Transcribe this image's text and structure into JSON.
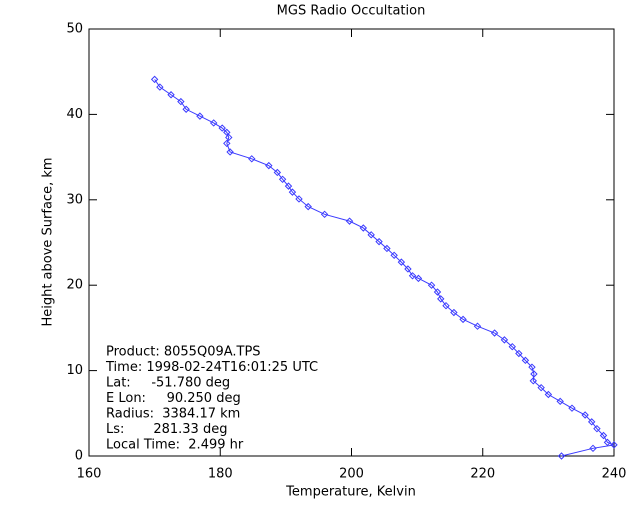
{
  "chart_data": {
    "type": "line",
    "title": "MGS Radio Occultation",
    "x_label": "Temperature, Kelvin",
    "y_label": "Height above Surface, km",
    "xlim": [
      160,
      240
    ],
    "xticks": [
      160,
      180,
      200,
      220,
      240
    ],
    "ylim": [
      0,
      50
    ],
    "yticks": [
      0,
      10,
      20,
      30,
      40,
      50
    ],
    "color": "#3a3aff",
    "x": [
      170.0,
      170.8,
      172.5,
      174.0,
      174.8,
      176.9,
      179.0,
      180.3,
      181.0,
      181.3,
      181.0,
      181.5,
      184.8,
      187.4,
      188.7,
      189.5,
      190.4,
      191.0,
      192.0,
      193.4,
      195.9,
      199.7,
      201.8,
      203.0,
      204.2,
      205.4,
      206.5,
      207.6,
      208.6,
      209.3,
      210.2,
      212.2,
      213.1,
      213.6,
      214.4,
      215.6,
      217.0,
      219.2,
      221.8,
      223.3,
      224.5,
      225.5,
      226.5,
      227.5,
      227.8,
      227.7,
      228.9,
      230.0,
      231.8,
      233.6,
      235.6,
      236.6,
      237.4,
      238.4,
      239.0,
      240.0,
      236.8,
      232.0
    ],
    "values": [
      44.1,
      43.2,
      42.3,
      41.5,
      40.6,
      39.8,
      39.0,
      38.4,
      37.9,
      37.3,
      36.6,
      35.6,
      34.8,
      34.0,
      33.2,
      32.4,
      31.6,
      30.9,
      30.1,
      29.2,
      28.3,
      27.5,
      26.7,
      25.9,
      25.1,
      24.3,
      23.5,
      22.7,
      21.9,
      21.1,
      20.8,
      20.0,
      19.2,
      18.4,
      17.6,
      16.8,
      16.0,
      15.2,
      14.4,
      13.6,
      12.8,
      12.0,
      11.2,
      10.4,
      9.6,
      8.8,
      8.0,
      7.2,
      6.4,
      5.6,
      4.8,
      4.0,
      3.2,
      2.4,
      1.6,
      1.3,
      0.9,
      0.0
    ],
    "annotations": [
      "Product: 8055Q09A.TPS",
      "Time: 1998-02-24T16:01:25 UTC",
      "Lat:     -51.780 deg",
      "E Lon:     90.250 deg",
      "Radius:  3384.17 km",
      "Ls:       281.33 deg",
      "Local Time:  2.499 hr"
    ]
  }
}
